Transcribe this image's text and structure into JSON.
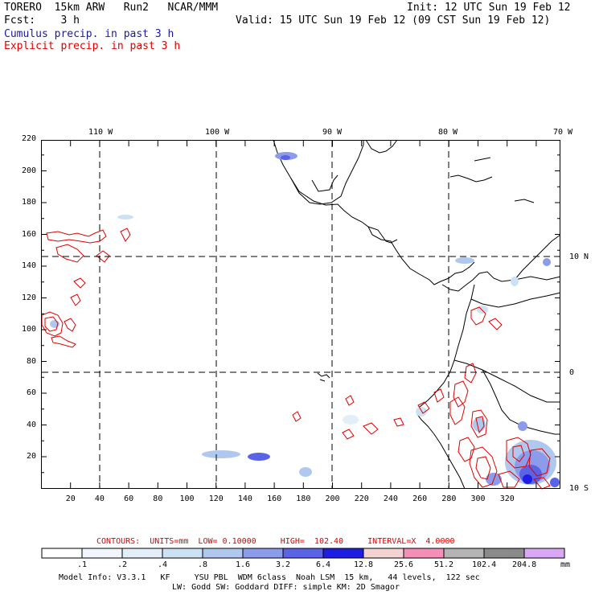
{
  "header": {
    "model": "TORERO  15km ARW   Run2   NCAR/MMM",
    "init": "Init: 12 UTC Sun 19 Feb 12",
    "fcst": "Fcst:    3 h",
    "valid": "Valid: 15 UTC Sun 19 Feb 12 (09 CST Sun 19 Feb 12)"
  },
  "legend": {
    "cumulus": "Cumulus precip. in past 3 h",
    "explicit": "Explicit precip. in past 3 h"
  },
  "map": {
    "lon_labels": [
      "110 W",
      "100 W",
      "90 W",
      "80 W",
      "70 W"
    ],
    "lat_labels_right": [
      "10 N",
      "0",
      "10 S"
    ],
    "x_ticks": [
      "20",
      "40",
      "60",
      "80",
      "100",
      "120",
      "140",
      "160",
      "180",
      "200",
      "220",
      "240",
      "260",
      "280",
      "300",
      "320"
    ],
    "y_ticks": [
      "20",
      "40",
      "60",
      "80",
      "100",
      "120",
      "140",
      "160",
      "180",
      "200",
      "220"
    ]
  },
  "contours_info": "CONTOURS:  UNITS=mm  LOW= 0.10000     HIGH=  102.40     INTERVAL=X  4.0000",
  "colorbar": {
    "labels": [
      ".1",
      ".2",
      ".4",
      ".8",
      "1.6",
      "3.2",
      "6.4",
      "12.8",
      "25.6",
      "51.2",
      "102.4",
      "204.8"
    ],
    "unit": "mm",
    "colors": [
      "#ffffff",
      "#f0f6fb",
      "#e2eef8",
      "#cce2f4",
      "#b0c8ee",
      "#8c9cea",
      "#5a62e6",
      "#1e1ee2",
      "#f5d2d2",
      "#f48fb8",
      "#b4b4b4",
      "#8a8a8a",
      "#d8a8f4"
    ]
  },
  "footer": {
    "line1": "Model Info: V3.3.1   KF     YSU PBL  WDM 6class  Noah LSM  15 km,   44 levels,  122 sec",
    "line2": "LW: Godd SW: Goddard DIFF: simple KM: 2D Smagor"
  }
}
